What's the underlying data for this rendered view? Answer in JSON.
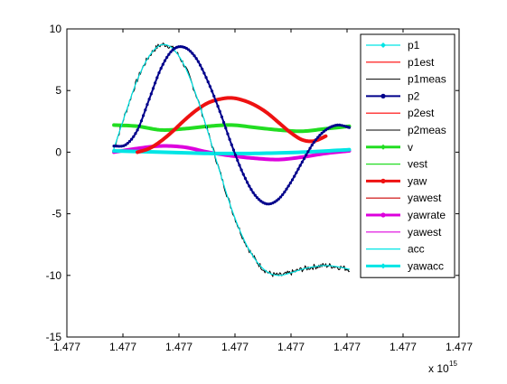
{
  "chart_data": {
    "type": "line",
    "title": "",
    "xlabel": "",
    "ylabel": "",
    "x_exponent_label": "x 10",
    "x_exponent_power": "15",
    "xlim": [
      0,
      1
    ],
    "ylim": [
      -15,
      10
    ],
    "x_ticks": [
      0,
      0.1429,
      0.2857,
      0.4286,
      0.5714,
      0.7143,
      0.8571,
      1.0
    ],
    "x_tick_labels": [
      "1.477",
      "1.477",
      "1.477",
      "1.477",
      "1.477",
      "1.477",
      "1.477",
      "1.477"
    ],
    "y_ticks": [
      10,
      5,
      0,
      -5,
      -10,
      -15
    ],
    "y_tick_labels": [
      "10",
      "5",
      "0",
      "-5",
      "-10",
      "-15"
    ],
    "grid": false,
    "legend_position": "top-right",
    "series": [
      {
        "name": "p1",
        "color": "#00e5e5",
        "width": 1.2,
        "marker": "diamond",
        "x": [
          0.12,
          0.15,
          0.18,
          0.21,
          0.24,
          0.27,
          0.3,
          0.33,
          0.36,
          0.39,
          0.42,
          0.45,
          0.48,
          0.51,
          0.54,
          0.57,
          0.6,
          0.63,
          0.66,
          0.69,
          0.72
        ],
        "y": [
          0.3,
          3.2,
          5.9,
          7.8,
          8.7,
          8.4,
          7.0,
          4.6,
          1.6,
          -1.6,
          -4.6,
          -7.0,
          -8.7,
          -9.7,
          -10.0,
          -9.8,
          -9.5,
          -9.3,
          -9.2,
          -9.3,
          -9.5
        ]
      },
      {
        "name": "p1est",
        "color": "#ff0000",
        "width": 1.2,
        "marker": "none",
        "x": [],
        "y": []
      },
      {
        "name": "p1meas",
        "color": "#000000",
        "width": 1.0,
        "marker": "none",
        "noise": true,
        "x": [
          0.12,
          0.15,
          0.18,
          0.21,
          0.24,
          0.27,
          0.3,
          0.33,
          0.36,
          0.39,
          0.42,
          0.45,
          0.48,
          0.51,
          0.54,
          0.57,
          0.6,
          0.63,
          0.66,
          0.69,
          0.72
        ],
        "y": [
          0.3,
          3.2,
          5.9,
          7.8,
          8.7,
          8.4,
          7.0,
          4.6,
          1.6,
          -1.6,
          -4.6,
          -7.0,
          -8.7,
          -9.7,
          -10.0,
          -9.8,
          -9.5,
          -9.3,
          -9.2,
          -9.3,
          -9.5
        ]
      },
      {
        "name": "p2",
        "color": "#00008b",
        "width": 2.0,
        "marker": "dot",
        "x": [
          0.12,
          0.15,
          0.18,
          0.21,
          0.24,
          0.27,
          0.3,
          0.33,
          0.36,
          0.39,
          0.42,
          0.45,
          0.48,
          0.51,
          0.54,
          0.57,
          0.6,
          0.63,
          0.66,
          0.69,
          0.72
        ],
        "y": [
          0.5,
          0.6,
          1.8,
          4.3,
          6.8,
          8.3,
          8.5,
          7.6,
          5.7,
          3.3,
          0.6,
          -1.8,
          -3.5,
          -4.2,
          -3.8,
          -2.5,
          -0.8,
          0.8,
          1.8,
          2.2,
          2.0
        ]
      },
      {
        "name": "p2est",
        "color": "#ff0000",
        "width": 1.2,
        "marker": "none",
        "x": [],
        "y": []
      },
      {
        "name": "p2meas",
        "color": "#000000",
        "width": 1.0,
        "marker": "none",
        "x": [],
        "y": []
      },
      {
        "name": "v",
        "color": "#22dd22",
        "width": 4.0,
        "marker": "diamond",
        "x": [
          0.12,
          0.18,
          0.24,
          0.3,
          0.36,
          0.42,
          0.48,
          0.54,
          0.6,
          0.66,
          0.72
        ],
        "y": [
          2.2,
          2.1,
          1.8,
          1.9,
          2.1,
          2.2,
          2.0,
          1.8,
          1.7,
          1.9,
          2.1
        ]
      },
      {
        "name": "vest",
        "color": "#22dd22",
        "width": 1.2,
        "marker": "none",
        "x": [],
        "y": []
      },
      {
        "name": "yaw",
        "color": "#ee1111",
        "width": 4.0,
        "marker": "dot",
        "x": [
          0.18,
          0.21,
          0.24,
          0.27,
          0.3,
          0.33,
          0.36,
          0.39,
          0.42,
          0.45,
          0.48,
          0.51,
          0.54,
          0.57,
          0.6,
          0.63,
          0.66
        ],
        "y": [
          0.0,
          0.3,
          0.9,
          1.7,
          2.6,
          3.4,
          4.0,
          4.3,
          4.4,
          4.2,
          3.8,
          3.2,
          2.4,
          1.6,
          1.0,
          0.9,
          1.3
        ]
      },
      {
        "name": "yawest",
        "color": "#cc0000",
        "width": 1.2,
        "marker": "none",
        "x": [],
        "y": []
      },
      {
        "name": "yawrate",
        "color": "#dd00dd",
        "width": 4.0,
        "marker": "dot",
        "x": [
          0.12,
          0.18,
          0.24,
          0.3,
          0.36,
          0.42,
          0.48,
          0.54,
          0.6,
          0.66,
          0.72
        ],
        "y": [
          0.0,
          0.3,
          0.5,
          0.4,
          0.0,
          -0.3,
          -0.5,
          -0.6,
          -0.4,
          -0.1,
          0.1
        ]
      },
      {
        "name": "yawest",
        "color": "#dd00dd",
        "width": 1.2,
        "marker": "none",
        "x": [],
        "y": []
      },
      {
        "name": "acc",
        "color": "#00e5e5",
        "width": 1.2,
        "marker": "none",
        "x": [],
        "y": []
      },
      {
        "name": "yawacc",
        "color": "#00e5e5",
        "width": 4.0,
        "marker": "diamond",
        "x": [
          0.12,
          0.24,
          0.36,
          0.48,
          0.6,
          0.72
        ],
        "y": [
          0.1,
          0.0,
          -0.1,
          -0.1,
          0.0,
          0.2
        ]
      }
    ]
  }
}
